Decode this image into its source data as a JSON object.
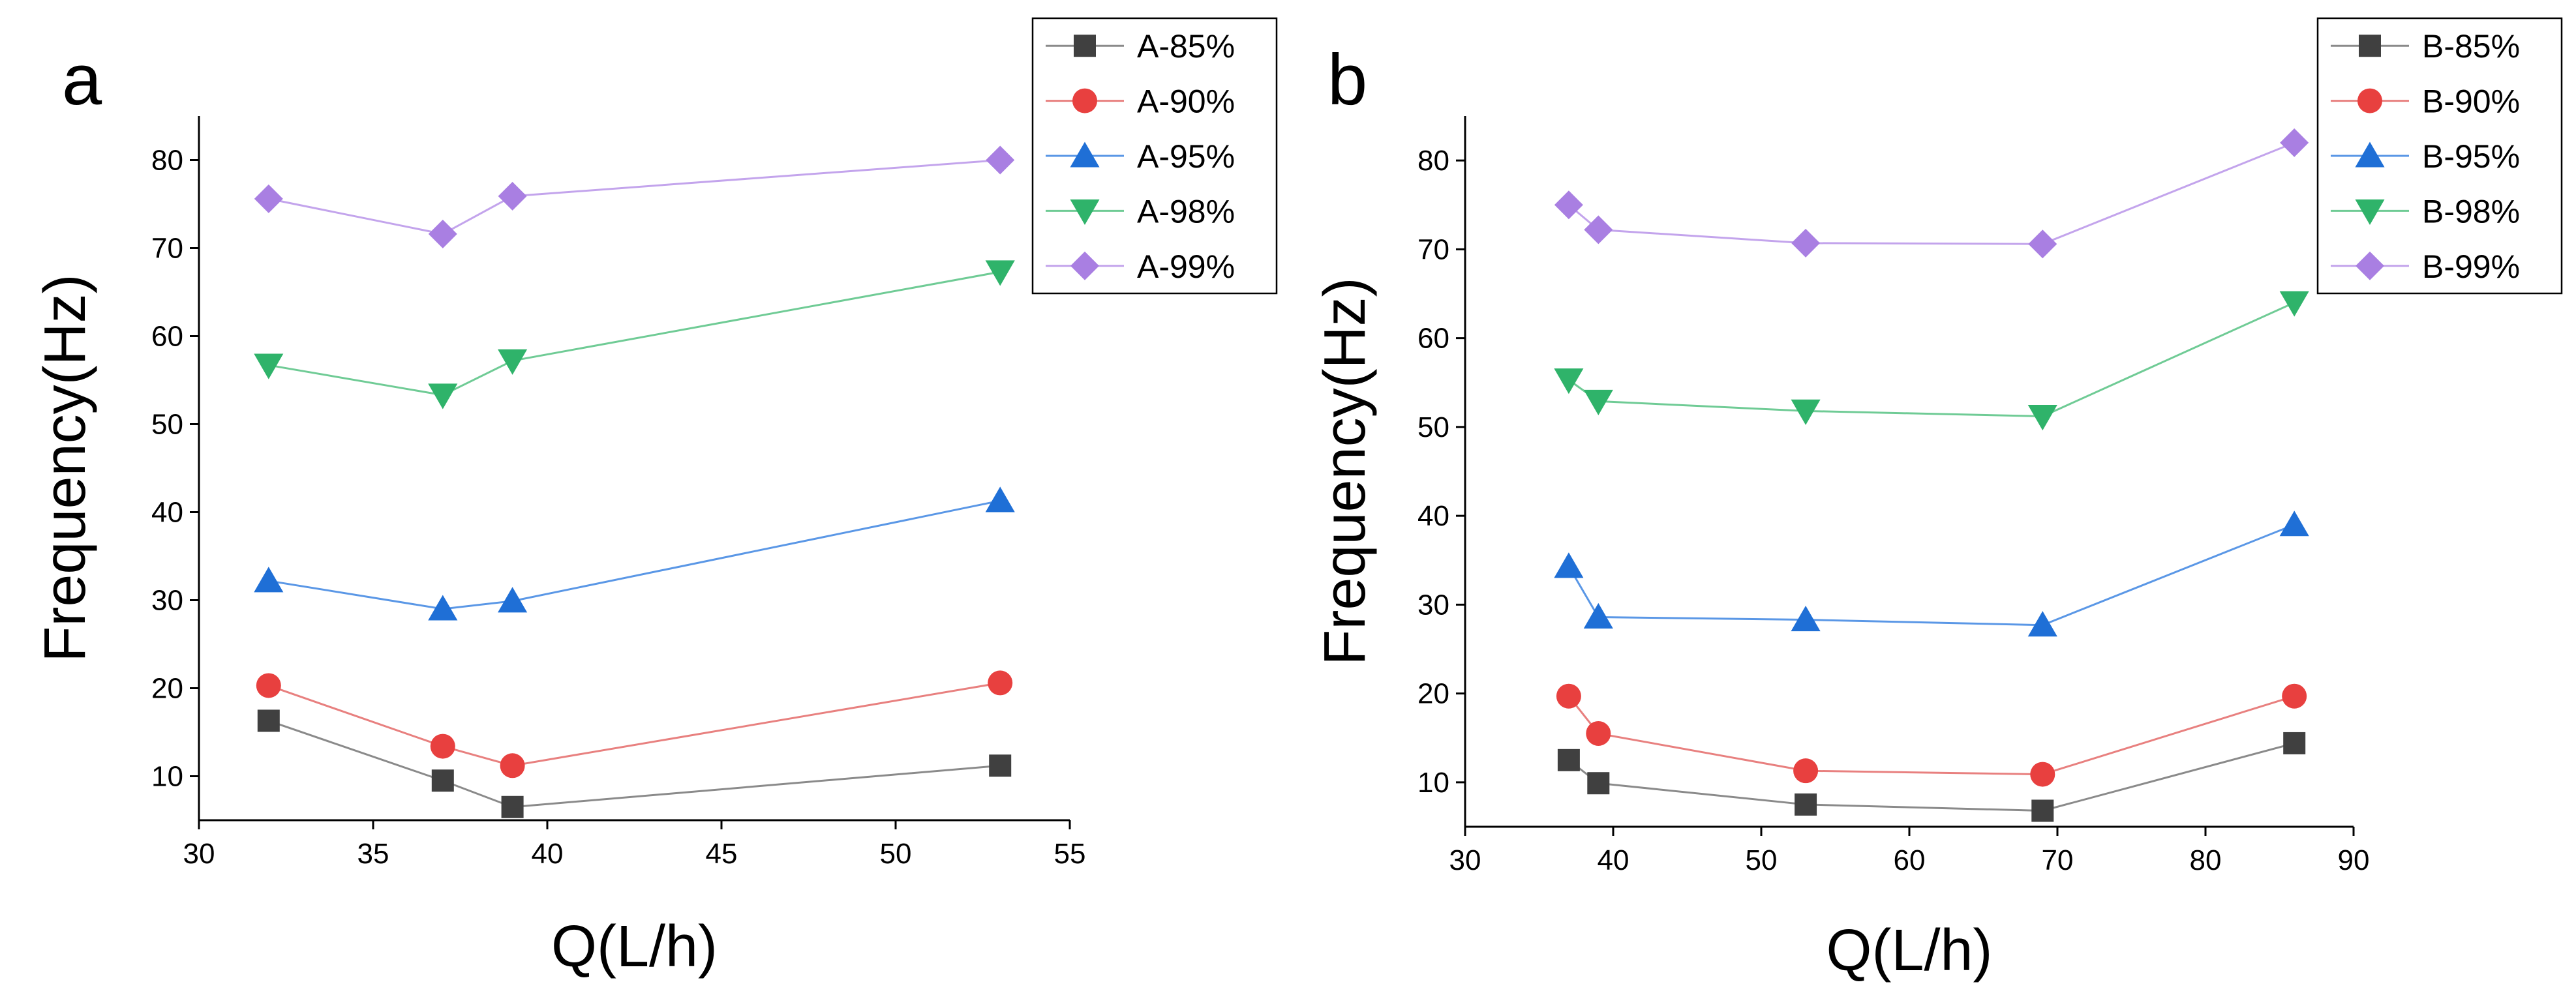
{
  "chart_data": [
    {
      "type": "line",
      "panel_label": "a",
      "xlabel": "Q(L/h)",
      "ylabel": "Frequency(Hz)",
      "xlim": [
        30,
        55
      ],
      "ylim": [
        5,
        85
      ],
      "xticks": [
        30,
        35,
        40,
        45,
        50,
        55
      ],
      "yticks": [
        10,
        20,
        30,
        40,
        50,
        60,
        70,
        80
      ],
      "grid": false,
      "legend_position": "top-right",
      "x": [
        32,
        37,
        39,
        53
      ],
      "series": [
        {
          "name": "A-85%",
          "marker": "square",
          "color": "#404040",
          "line_color": "#8a8a8a",
          "values": [
            16.3,
            9.5,
            6.5,
            11.2
          ]
        },
        {
          "name": "A-90%",
          "marker": "circle",
          "color": "#e8403f",
          "line_color": "#e8807f",
          "values": [
            20.3,
            13.4,
            11.2,
            20.6
          ]
        },
        {
          "name": "A-95%",
          "marker": "triangle-up",
          "color": "#1f6fd6",
          "line_color": "#5a97e6",
          "values": [
            32.2,
            29.0,
            29.9,
            41.3
          ]
        },
        {
          "name": "A-98%",
          "marker": "triangle-down",
          "color": "#2fb36a",
          "line_color": "#6fcb95",
          "values": [
            56.7,
            53.3,
            57.2,
            67.3
          ]
        },
        {
          "name": "A-99%",
          "marker": "diamond",
          "color": "#a97fe2",
          "line_color": "#c3a4ec",
          "values": [
            75.6,
            71.6,
            75.9,
            80.0
          ]
        }
      ]
    },
    {
      "type": "line",
      "panel_label": "b",
      "xlabel": "Q(L/h)",
      "ylabel": "Frequency(Hz)",
      "xlim": [
        30,
        90
      ],
      "ylim": [
        5,
        85
      ],
      "xticks": [
        30,
        40,
        50,
        60,
        70,
        80,
        90
      ],
      "yticks": [
        10,
        20,
        30,
        40,
        50,
        60,
        70,
        80
      ],
      "grid": false,
      "legend_position": "top-right",
      "x": [
        37,
        39,
        53,
        69,
        86
      ],
      "series": [
        {
          "name": "B-85%",
          "marker": "square",
          "color": "#404040",
          "line_color": "#8a8a8a",
          "values": [
            12.5,
            9.9,
            7.5,
            6.8,
            14.4
          ]
        },
        {
          "name": "B-90%",
          "marker": "circle",
          "color": "#e8403f",
          "line_color": "#e8807f",
          "values": [
            19.7,
            15.5,
            11.3,
            10.9,
            19.7
          ]
        },
        {
          "name": "B-95%",
          "marker": "triangle-up",
          "color": "#1f6fd6",
          "line_color": "#5a97e6",
          "values": [
            34.3,
            28.6,
            28.3,
            27.7,
            39.0
          ]
        },
        {
          "name": "B-98%",
          "marker": "triangle-down",
          "color": "#2fb36a",
          "line_color": "#6fcb95",
          "values": [
            55.3,
            52.9,
            51.8,
            51.2,
            64.0
          ]
        },
        {
          "name": "B-99%",
          "marker": "diamond",
          "color": "#a97fe2",
          "line_color": "#c3a4ec",
          "values": [
            75.0,
            72.2,
            70.7,
            70.6,
            82.0
          ]
        }
      ]
    }
  ]
}
